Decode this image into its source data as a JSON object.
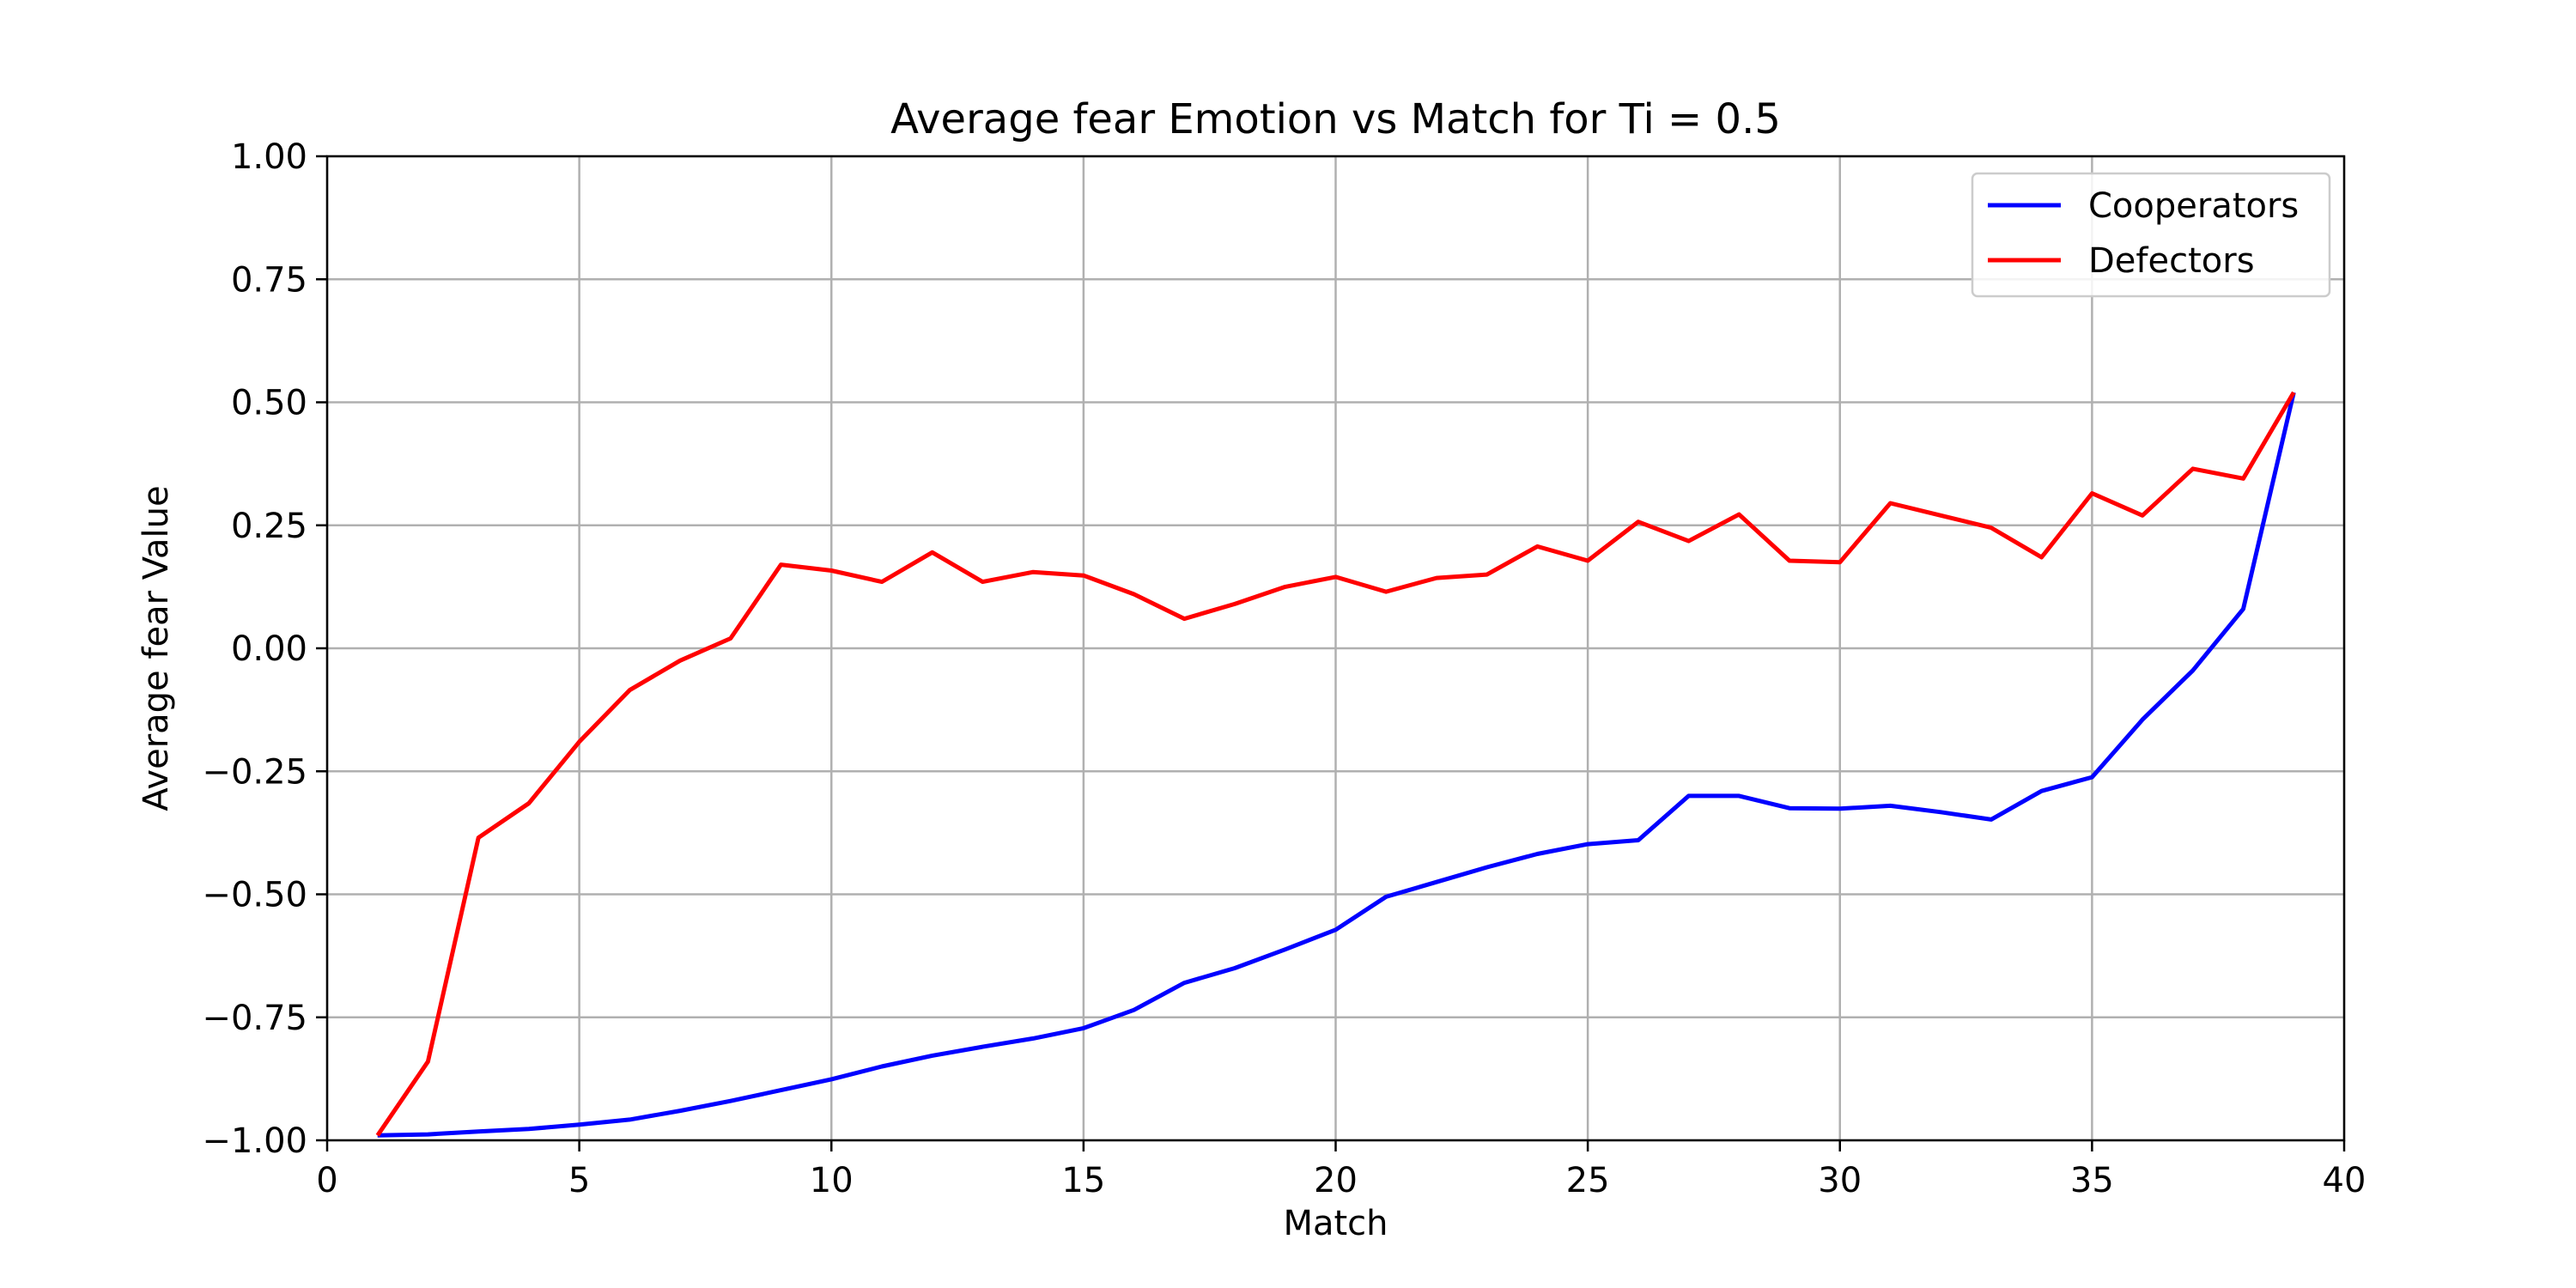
{
  "chart_data": {
    "type": "line",
    "title": "Average fear Emotion vs Match for Ti = 0.5",
    "xlabel": "Match",
    "ylabel": "Average fear Value",
    "xlim": [
      0,
      40
    ],
    "ylim": [
      -1.0,
      1.0
    ],
    "xticks": [
      "0",
      "5",
      "10",
      "15",
      "20",
      "25",
      "30",
      "35",
      "40"
    ],
    "yticks": [
      "−1.00",
      "−0.75",
      "−0.50",
      "−0.25",
      "0.00",
      "0.25",
      "0.50",
      "0.75",
      "1.00"
    ],
    "grid": true,
    "legend_position": "top-right",
    "x": [
      1,
      2,
      3,
      4,
      5,
      6,
      7,
      8,
      9,
      10,
      11,
      12,
      13,
      14,
      15,
      16,
      17,
      18,
      19,
      20,
      21,
      22,
      23,
      24,
      25,
      26,
      27,
      28,
      29,
      30,
      31,
      32,
      33,
      34,
      35,
      36,
      37,
      38,
      39
    ],
    "series": [
      {
        "name": "Cooperators",
        "color": "#0000ff",
        "values": [
          -0.99,
          -0.988,
          -0.982,
          -0.977,
          -0.968,
          -0.958,
          -0.94,
          -0.92,
          -0.898,
          -0.876,
          -0.85,
          -0.828,
          -0.81,
          -0.793,
          -0.772,
          -0.735,
          -0.68,
          -0.65,
          -0.612,
          -0.572,
          -0.505,
          -0.475,
          -0.445,
          -0.418,
          -0.398,
          -0.39,
          -0.3,
          -0.3,
          -0.325,
          -0.326,
          -0.32,
          -0.333,
          -0.348,
          -0.29,
          -0.262,
          -0.145,
          -0.045,
          0.08,
          0.52
        ]
      },
      {
        "name": "Defectors",
        "color": "#ff0000",
        "values": [
          -0.99,
          -0.84,
          -0.385,
          -0.315,
          -0.19,
          -0.085,
          -0.025,
          0.02,
          0.17,
          0.158,
          0.135,
          0.195,
          0.135,
          0.155,
          0.148,
          0.11,
          0.06,
          0.09,
          0.125,
          0.145,
          0.115,
          0.143,
          0.15,
          0.207,
          0.178,
          0.257,
          0.218,
          0.272,
          0.178,
          0.175,
          0.295,
          0.27,
          0.245,
          0.185,
          0.315,
          0.27,
          0.365,
          0.345,
          0.52
        ]
      }
    ]
  }
}
